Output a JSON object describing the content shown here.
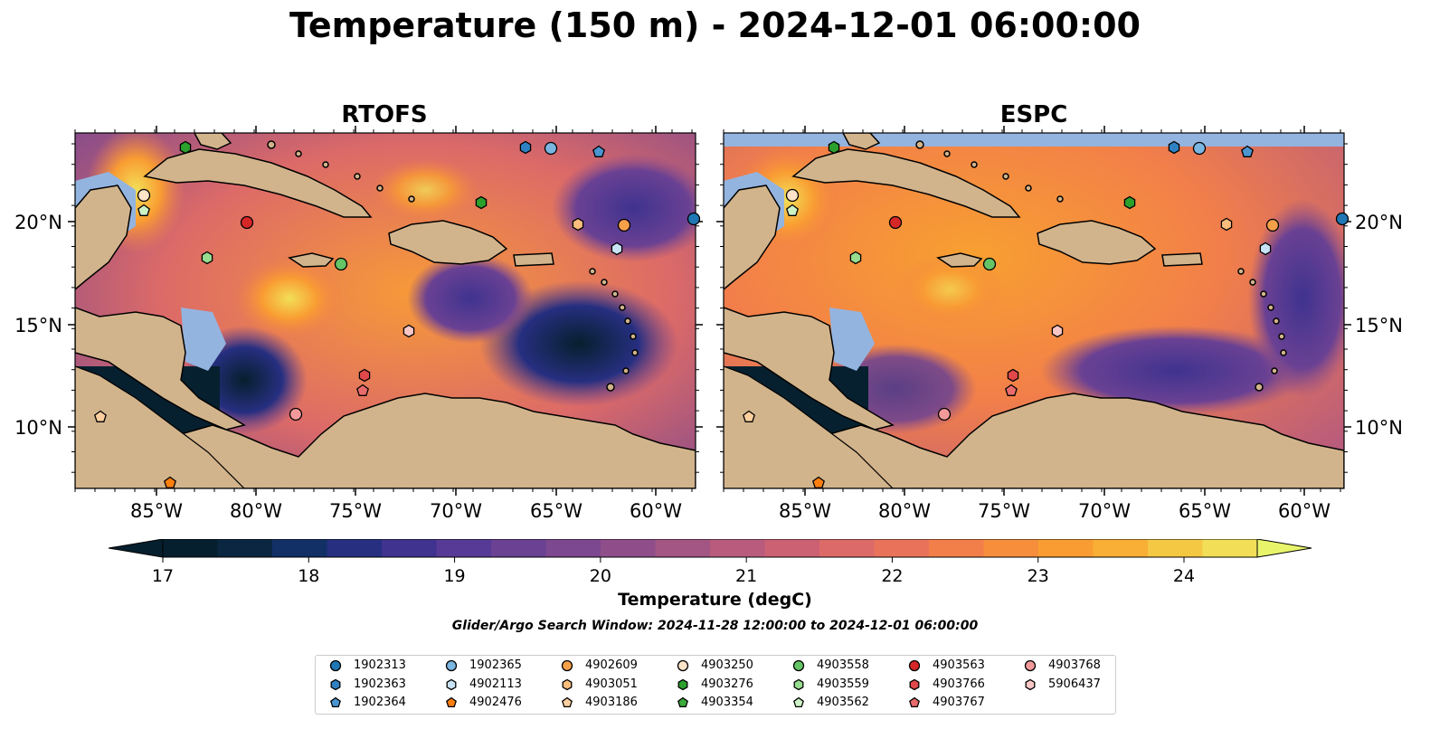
{
  "title": "Temperature (150 m) - 2024-12-01 06:00:00",
  "panels": [
    {
      "title": "RTOFS"
    },
    {
      "title": "ESPC"
    }
  ],
  "axes": {
    "lon_ticks": [
      "85°W",
      "80°W",
      "75°W",
      "70°W",
      "65°W",
      "60°W"
    ],
    "lat_ticks": [
      "20°N",
      "15°N",
      "10°N"
    ]
  },
  "colorbar": {
    "label": "Temperature (degC)",
    "ticks": [
      "17",
      "18",
      "19",
      "20",
      "21",
      "22",
      "23",
      "24"
    ],
    "min": 16.75,
    "max": 24.5,
    "colors": [
      "#061f2e",
      "#0b2640",
      "#123066",
      "#262f80",
      "#3f338f",
      "#563a96",
      "#6a4193",
      "#7c488f",
      "#8f4e8a",
      "#a35584",
      "#b85b7d",
      "#cc6174",
      "#dc6a68",
      "#e9735a",
      "#f27f4a",
      "#f68e3c",
      "#f99d32",
      "#f9af36",
      "#f5c844",
      "#f2df57",
      "#e8f56a"
    ]
  },
  "search_window": "Glider/Argo Search Window: 2024-11-28 12:00:00 to 2024-12-01 06:00:00",
  "colors": {
    "land": "#d2b48c",
    "shallow": "#94b4e0",
    "deep": "#06202f"
  },
  "legend": [
    {
      "id": "1902313",
      "color": "#1f77b4",
      "marker": "circle"
    },
    {
      "id": "1902363",
      "color": "#2f82c2",
      "marker": "hexagon"
    },
    {
      "id": "1902364",
      "color": "#4b95d0",
      "marker": "pentagon"
    },
    {
      "id": "1902365",
      "color": "#7ab6e2",
      "marker": "circle"
    },
    {
      "id": "4902113",
      "color": "#c9e3f6",
      "marker": "hexagon"
    },
    {
      "id": "4902476",
      "color": "#ff7f0e",
      "marker": "pentagon"
    },
    {
      "id": "4902609",
      "color": "#f7a04a",
      "marker": "circle"
    },
    {
      "id": "4903051",
      "color": "#fbbd7c",
      "marker": "hexagon"
    },
    {
      "id": "4903186",
      "color": "#fdcf9f",
      "marker": "pentagon"
    },
    {
      "id": "4903250",
      "color": "#fde3c7",
      "marker": "circle"
    },
    {
      "id": "4903276",
      "color": "#2ca02c",
      "marker": "hexagon"
    },
    {
      "id": "4903354",
      "color": "#3aaa3a",
      "marker": "pentagon"
    },
    {
      "id": "4903558",
      "color": "#65c465",
      "marker": "circle"
    },
    {
      "id": "4903559",
      "color": "#98dd8f",
      "marker": "hexagon"
    },
    {
      "id": "4903562",
      "color": "#cdf2c6",
      "marker": "pentagon"
    },
    {
      "id": "4903563",
      "color": "#d62728",
      "marker": "circle"
    },
    {
      "id": "4903766",
      "color": "#e04849",
      "marker": "hexagon"
    },
    {
      "id": "4903767",
      "color": "#ea6b6c",
      "marker": "pentagon"
    },
    {
      "id": "4903768",
      "color": "#f29a9a",
      "marker": "circle"
    },
    {
      "id": "5906437",
      "color": "#f9c6c6",
      "marker": "hexagon"
    }
  ]
}
